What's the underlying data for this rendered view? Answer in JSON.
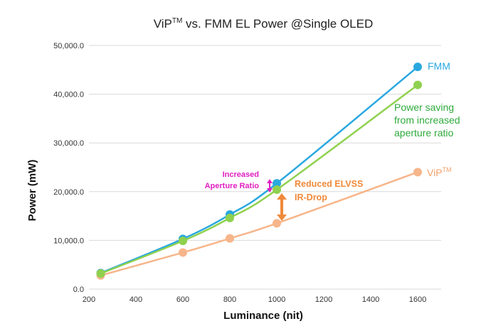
{
  "chart_data": {
    "type": "line",
    "title_main": "ViP",
    "title_sup": "TM",
    "title_rest": " vs. FMM EL Power @Single OLED",
    "xlabel": "Luminance (nit)",
    "ylabel": "Power (mW)",
    "xlim": [
      200,
      1700
    ],
    "ylim": [
      0,
      50000
    ],
    "x_ticks": [
      "200",
      "400",
      "600",
      "800",
      "1000",
      "1200",
      "1400",
      "1600"
    ],
    "y_ticks": [
      "0.0",
      "10,000.0",
      "20,000.0",
      "30,000.0",
      "40,000.0",
      "50,000.0"
    ],
    "grid": true,
    "series": [
      {
        "name": "FMM",
        "color": "#29a8e0",
        "x": [
          250,
          600,
          800,
          1000,
          1600
        ],
        "y": [
          3300,
          10300,
          15300,
          21700,
          45600
        ]
      },
      {
        "name_main": "ViP",
        "name_sup": "TM",
        "color": "#f7b58a",
        "x": [
          250,
          600,
          800,
          1000,
          1600
        ],
        "y": [
          2800,
          7500,
          10400,
          13500,
          24000
        ]
      },
      {
        "color": "#8fd14f",
        "x": [
          250,
          600,
          800,
          1000,
          1600
        ],
        "y": [
          3200,
          9900,
          14600,
          20400,
          41900
        ]
      }
    ],
    "annotations": {
      "power_saving": [
        "Power saving",
        "from increased",
        "aperture ratio"
      ],
      "increased_aperture": [
        "Increased",
        "Aperture Ratio"
      ],
      "reduced_elvss": [
        "Reduced ELVSS",
        "IR-Drop"
      ]
    },
    "colors": {
      "magenta_arrow": "#e020c0",
      "orange_arrow": "#f08a3a",
      "power_saving_text": "#2eaa3c"
    }
  }
}
